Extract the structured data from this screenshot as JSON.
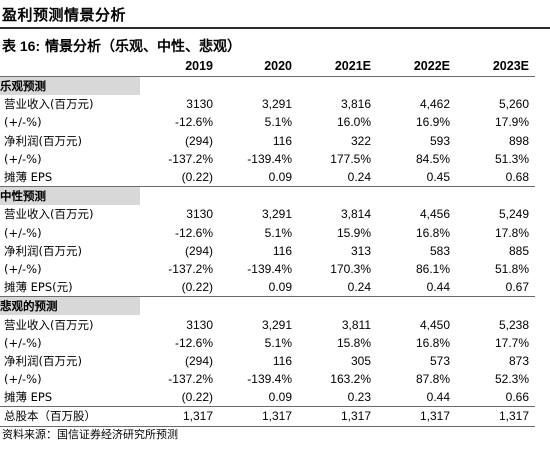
{
  "page": {
    "title": "盈利预测情景分析"
  },
  "caption": {
    "prefix": "表 16:",
    "text": "情景分析（乐观、中性、悲观）"
  },
  "header": {
    "label": "",
    "years": [
      "2019",
      "2020",
      "2021E",
      "2022E",
      "2023E"
    ]
  },
  "sections": [
    {
      "name": "乐观预测",
      "rows": [
        {
          "label": "营业收入(百万元)",
          "values": [
            "3130",
            "3,291",
            "3,816",
            "4,462",
            "5,260"
          ]
        },
        {
          "label": "(+/-%)",
          "values": [
            "-12.6%",
            "5.1%",
            "16.0%",
            "16.9%",
            "17.9%"
          ]
        },
        {
          "label": "净利润(百万元)",
          "values": [
            "(294)",
            "116",
            "322",
            "593",
            "898"
          ]
        },
        {
          "label": "(+/-%)",
          "values": [
            "-137.2%",
            "-139.4%",
            "177.5%",
            "84.5%",
            "51.3%"
          ]
        },
        {
          "label": "摊薄 EPS",
          "values": [
            "(0.22)",
            "0.09",
            "0.24",
            "0.45",
            "0.68"
          ]
        }
      ]
    },
    {
      "name": "中性预测",
      "rows": [
        {
          "label": "营业收入(百万元)",
          "values": [
            "3130",
            "3,291",
            "3,814",
            "4,456",
            "5,249"
          ]
        },
        {
          "label": "(+/-%)",
          "values": [
            "-12.6%",
            "5.1%",
            "15.9%",
            "16.8%",
            "17.8%"
          ]
        },
        {
          "label": "净利润(百万元)",
          "values": [
            "(294)",
            "116",
            "313",
            "583",
            "885"
          ]
        },
        {
          "label": "(+/-%)",
          "values": [
            "-137.2%",
            "-139.4%",
            "170.3%",
            "86.1%",
            "51.8%"
          ]
        },
        {
          "label": "摊薄 EPS(元)",
          "values": [
            "(0.22)",
            "0.09",
            "0.24",
            "0.44",
            "0.67"
          ]
        }
      ]
    },
    {
      "name": "悲观的预测",
      "rows": [
        {
          "label": "营业收入(百万元)",
          "values": [
            "3130",
            "3,291",
            "3,811",
            "4,450",
            "5,238"
          ]
        },
        {
          "label": "(+/-%)",
          "values": [
            "-12.6%",
            "5.1%",
            "15.8%",
            "16.8%",
            "17.7%"
          ]
        },
        {
          "label": "净利润(百万元)",
          "values": [
            "(294)",
            "116",
            "305",
            "573",
            "873"
          ]
        },
        {
          "label": "(+/-%)",
          "values": [
            "-137.2%",
            "-139.4%",
            "163.2%",
            "87.8%",
            "52.3%"
          ]
        },
        {
          "label": "摊薄 EPS",
          "values": [
            "(0.22)",
            "0.09",
            "0.23",
            "0.44",
            "0.66"
          ]
        }
      ]
    }
  ],
  "total": {
    "label": "总股本（百万股）",
    "values": [
      "1,317",
      "1,317",
      "1,317",
      "1,317",
      "1,317"
    ]
  },
  "source": "资料来源：国信证券经济研究所预测"
}
